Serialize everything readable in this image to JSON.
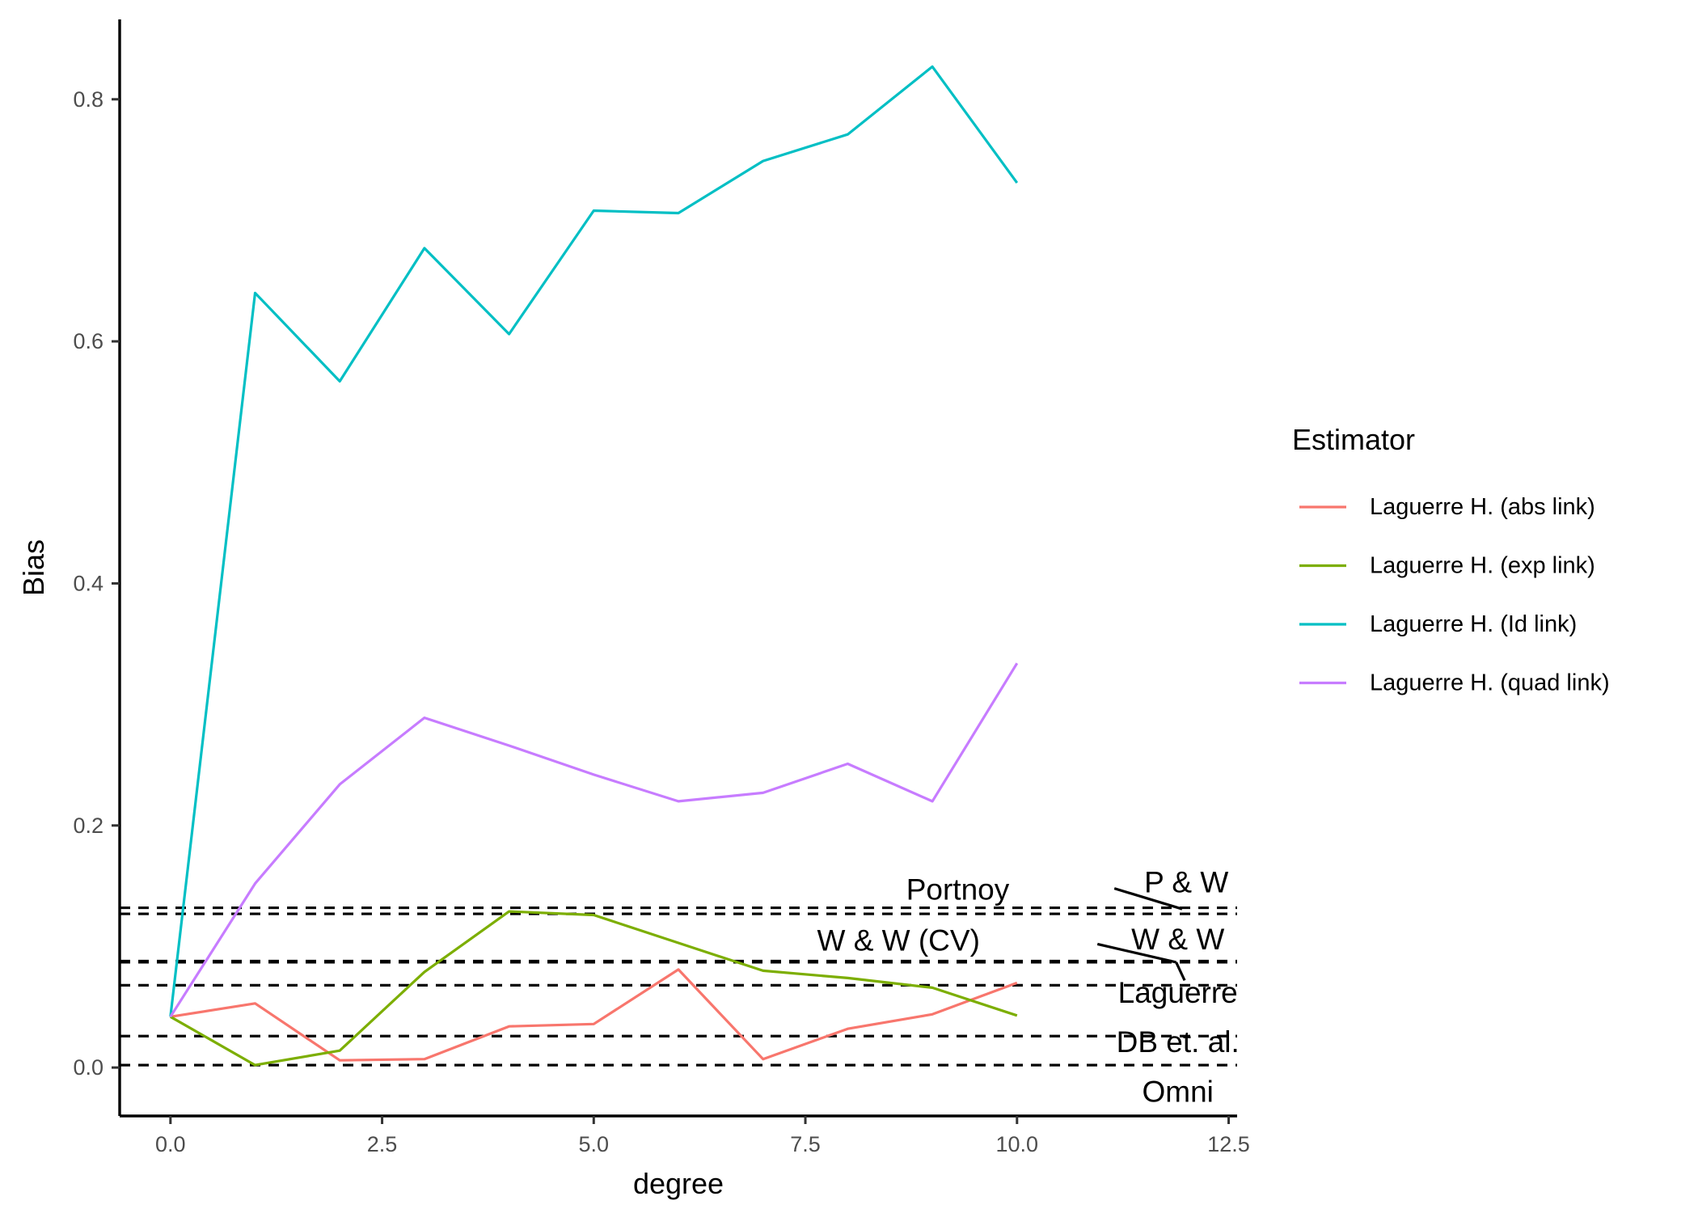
{
  "chart_data": {
    "type": "line",
    "title": "",
    "xlabel": "degree",
    "ylabel": "Bias",
    "xlim": [
      -0.6,
      12.6
    ],
    "ylim": [
      -0.04,
      0.866
    ],
    "grid": false,
    "x_ticks": [
      0,
      2.5,
      5,
      7.5,
      10,
      12.5
    ],
    "x_tick_labels": [
      "0.0",
      "2.5",
      "5.0",
      "7.5",
      "10.0",
      "12.5"
    ],
    "y_ticks": [
      0,
      0.2,
      0.4,
      0.6,
      0.8
    ],
    "y_tick_labels": [
      "0.0",
      "0.2",
      "0.4",
      "0.6",
      "0.8"
    ],
    "x": [
      0,
      1,
      2,
      3,
      4,
      5,
      6,
      7,
      8,
      9,
      10
    ],
    "series": [
      {
        "name": "Laguerre H. (abs link)",
        "color": "#F8766D",
        "values": [
          0.042,
          0.053,
          0.006,
          0.007,
          0.034,
          0.036,
          0.081,
          0.007,
          0.032,
          0.044,
          0.07
        ]
      },
      {
        "name": "Laguerre H. (exp link)",
        "color": "#7CAE00",
        "values": [
          0.042,
          0.002,
          0.014,
          0.079,
          0.129,
          0.126,
          0.103,
          0.08,
          0.074,
          0.066,
          0.043
        ]
      },
      {
        "name": "Laguerre H. (Id link)",
        "color": "#00BFC4",
        "values": [
          0.042,
          0.64,
          0.567,
          0.677,
          0.606,
          0.708,
          0.706,
          0.749,
          0.771,
          0.827,
          0.731
        ]
      },
      {
        "name": "Laguerre H. (quad link)",
        "color": "#C77CFF",
        "values": [
          0.042,
          0.152,
          0.234,
          0.289,
          0.266,
          0.242,
          0.22,
          0.227,
          0.251,
          0.22,
          0.334
        ]
      }
    ],
    "reference_lines": [
      {
        "label": "P & W",
        "value": 0.132,
        "label_x": 12.0,
        "label_y": 0.153
      },
      {
        "label": "Portnoy",
        "value": 0.127,
        "label_x": 9.3,
        "label_y": 0.147
      },
      {
        "label": "W & W (CV)",
        "value": 0.088,
        "label_x": 8.6,
        "label_y": 0.105
      },
      {
        "label": "W & W",
        "value": 0.087,
        "label_x": 11.9,
        "label_y": 0.106
      },
      {
        "label": "Laguerre",
        "value": 0.068,
        "label_x": 11.9,
        "label_y": 0.062
      },
      {
        "label": "DB et. al.",
        "value": 0.026,
        "label_x": 11.9,
        "label_y": 0.021
      },
      {
        "label": "Omni",
        "value": 0.002,
        "label_x": 11.9,
        "label_y": -0.02
      }
    ],
    "legend": {
      "title": "Estimator",
      "position": "right"
    }
  }
}
